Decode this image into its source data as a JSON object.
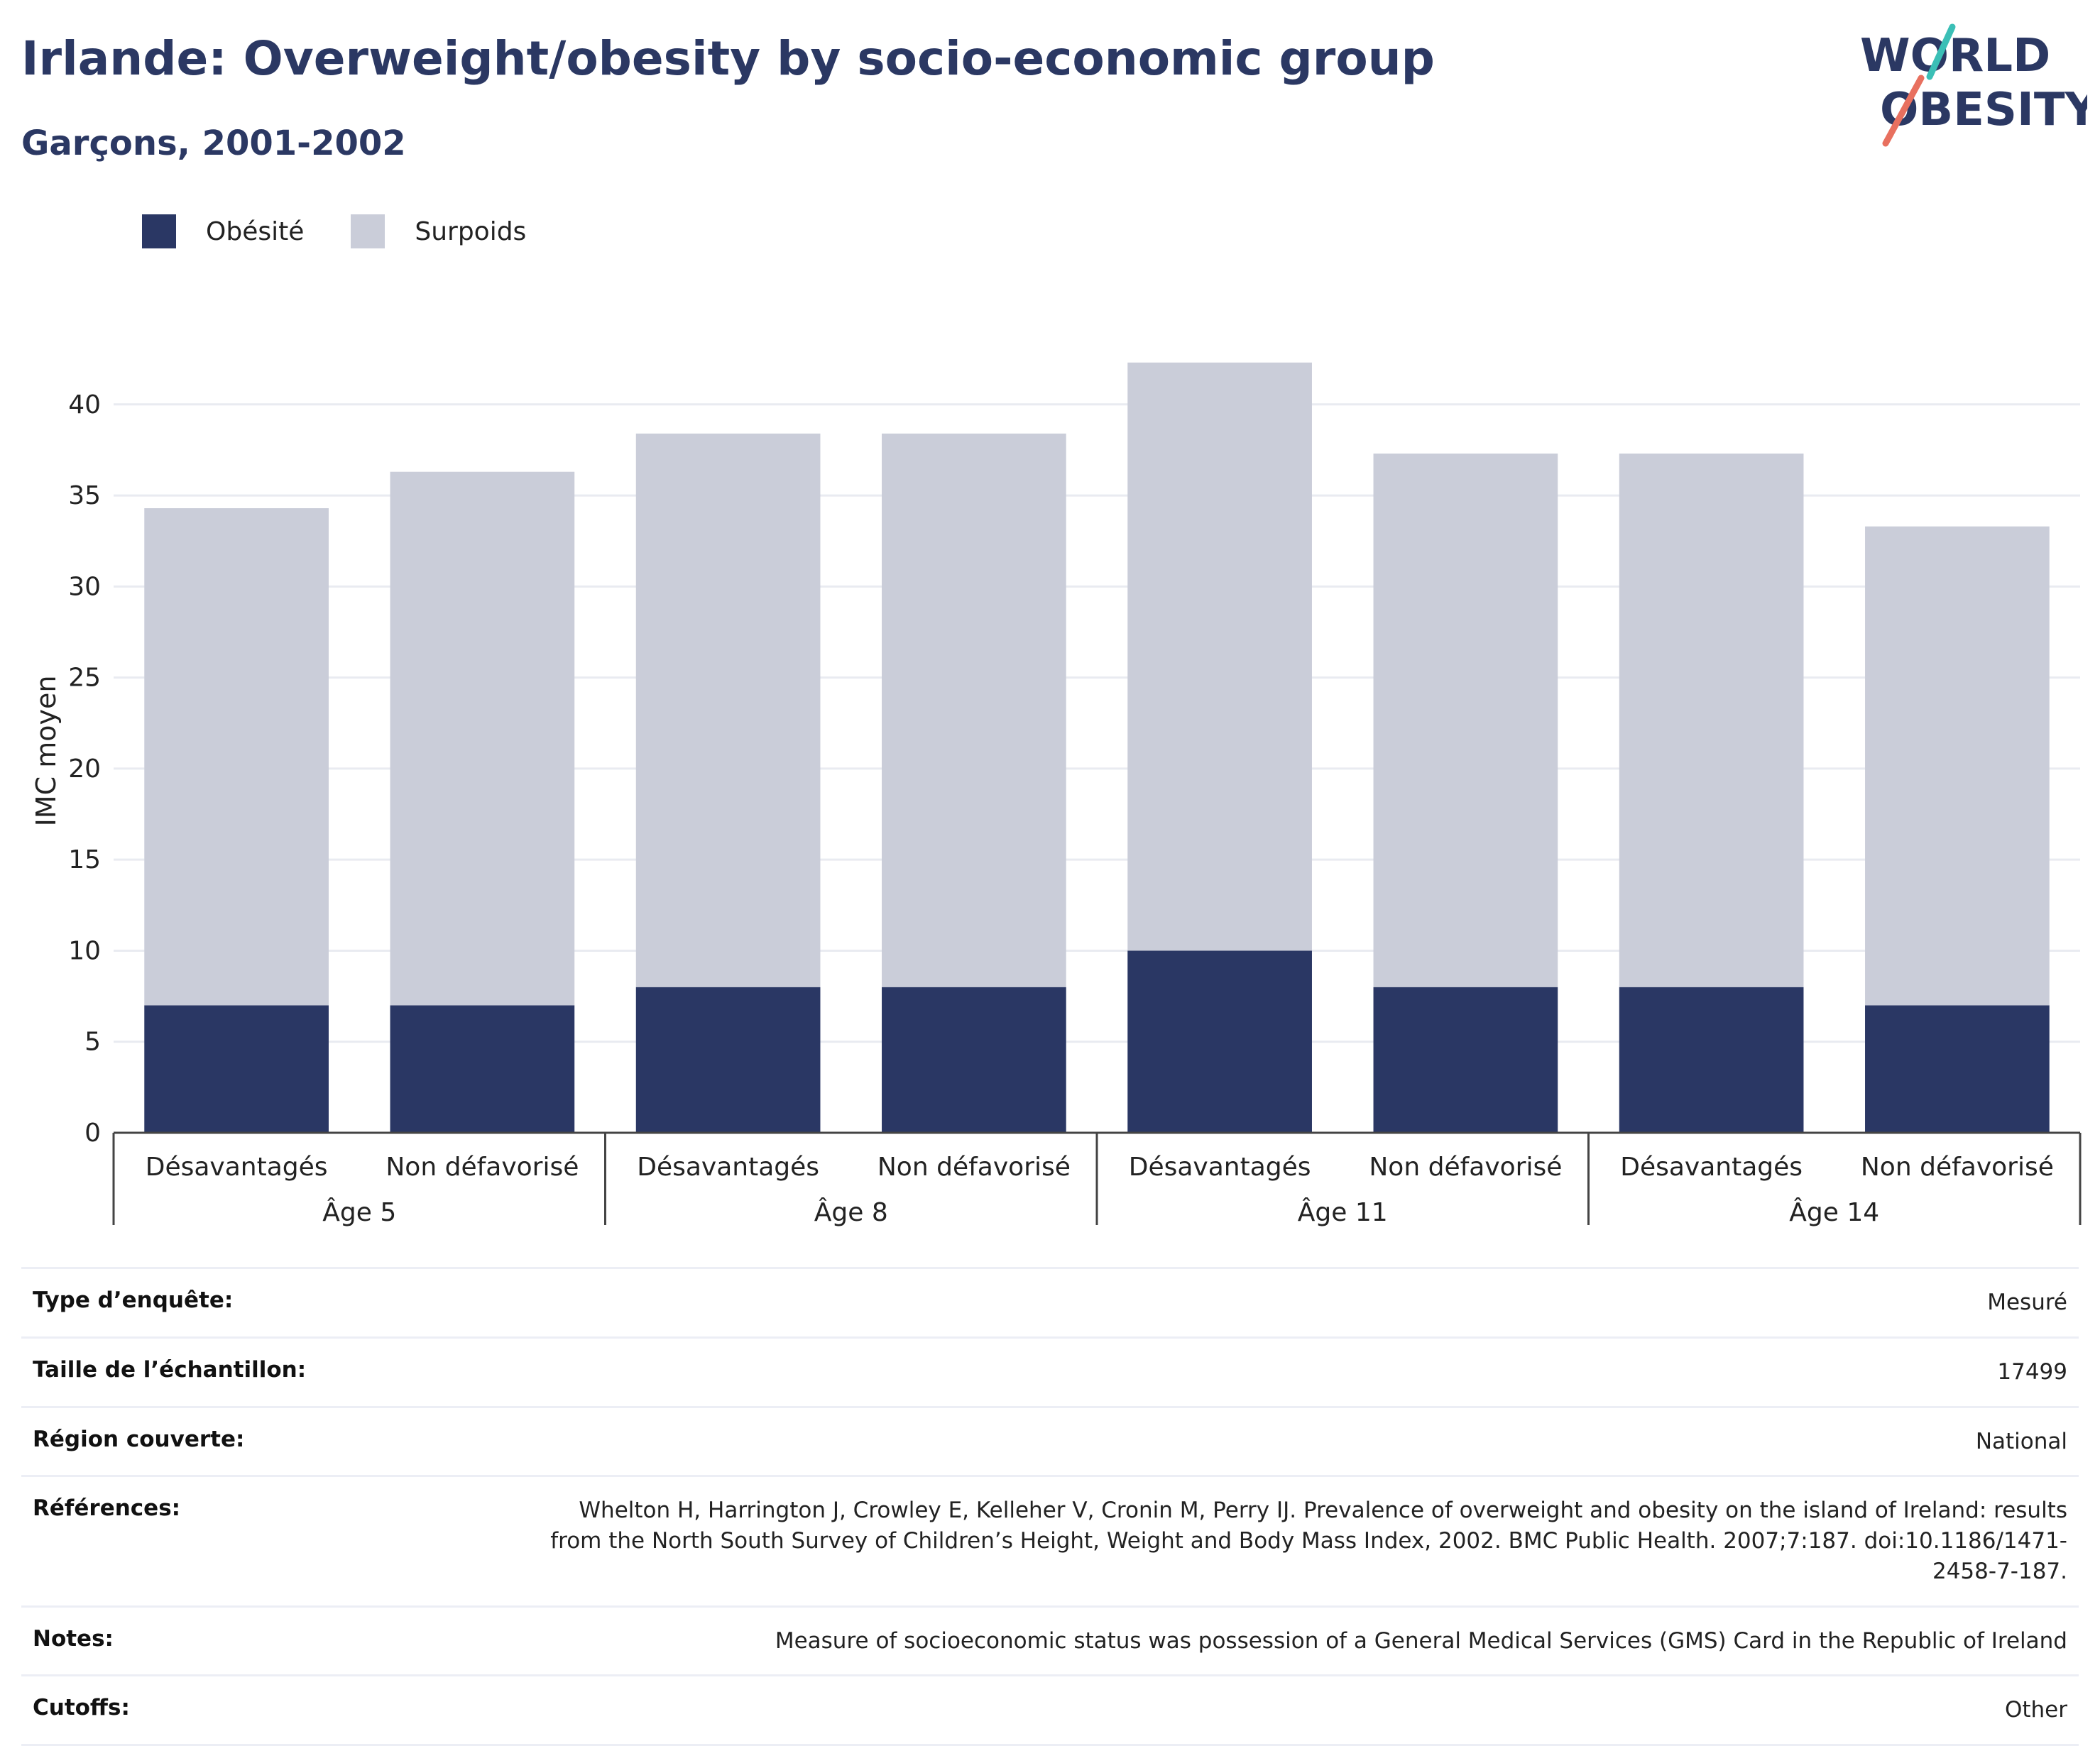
{
  "header": {
    "title": "Irlande: Overweight/obesity by socio-economic group",
    "subtitle": "Garçons, 2001-2002"
  },
  "logo": {
    "line1": "WORLD",
    "line2": "OBESITY",
    "colors": {
      "text": "#2b3863",
      "accent_teal": "#3bbfb6",
      "accent_coral": "#e8705f"
    }
  },
  "legend": [
    {
      "label": "Obésité",
      "color": "#2a3764"
    },
    {
      "label": "Surpoids",
      "color": "#cacdd9"
    }
  ],
  "chart_data": {
    "type": "bar",
    "stacked": true,
    "groups": [
      {
        "label": "Âge 5",
        "categories": [
          "Désavantagés",
          "Non défavorisé"
        ]
      },
      {
        "label": "Âge 8",
        "categories": [
          "Désavantagés",
          "Non défavorisé"
        ]
      },
      {
        "label": "Âge 11",
        "categories": [
          "Désavantagés",
          "Non défavorisé"
        ]
      },
      {
        "label": "Âge 14",
        "categories": [
          "Désavantagés",
          "Non défavorisé"
        ]
      }
    ],
    "series": [
      {
        "name": "Obésité",
        "color": "#2a3764",
        "values": [
          7,
          7,
          8,
          8,
          10,
          8,
          8,
          7
        ]
      },
      {
        "name": "Surpoids",
        "color": "#cacdd9",
        "values": [
          27.3,
          29.3,
          30.4,
          30.4,
          32.3,
          29.3,
          29.3,
          26.3
        ]
      }
    ],
    "totals": [
      34.3,
      36.3,
      38.4,
      38.4,
      42.3,
      37.3,
      37.3,
      33.3
    ],
    "ylabel": "IMC moyen",
    "ylim": [
      0,
      43.5
    ],
    "yticks": [
      0,
      5,
      10,
      15,
      20,
      25,
      30,
      35,
      40
    ],
    "grid": true,
    "legend_position": "top-left"
  },
  "info": [
    {
      "label": "Type d’enquête:",
      "value": "Mesuré"
    },
    {
      "label": "Taille de l’échantillon:",
      "value": "17499"
    },
    {
      "label": "Région couverte:",
      "value": "National"
    },
    {
      "label": "Références:",
      "value": "Whelton H, Harrington J, Crowley E, Kelleher V, Cronin M, Perry IJ. Prevalence of overweight and obesity on the island of Ireland: results from the North South Survey of Children’s Height, Weight and Body Mass Index, 2002. BMC Public Health. 2007;7:187. doi:10.1186/1471-2458-7-187."
    },
    {
      "label": "Notes:",
      "value": "Measure of socioeconomic status was possession of a General Medical Services (GMS) Card in the Republic of Ireland"
    },
    {
      "label": "Cutoffs:",
      "value": "Other"
    }
  ]
}
